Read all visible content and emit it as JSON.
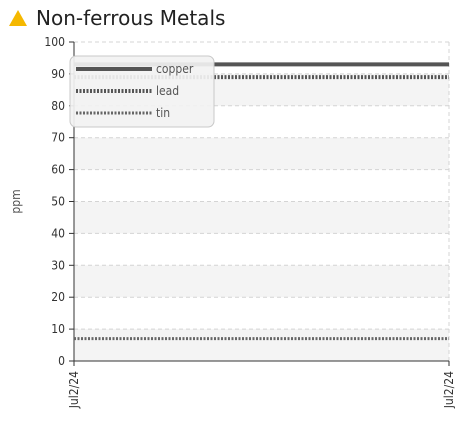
{
  "header": {
    "title": "Non-ferrous Metals",
    "icon": "warning-triangle-icon",
    "icon_color": "#f5b800"
  },
  "chart_data": {
    "type": "line",
    "title": "Non-ferrous Metals",
    "xlabel": "",
    "ylabel": "ppm",
    "ylim": [
      0,
      100
    ],
    "yticks": [
      0,
      10,
      20,
      30,
      40,
      50,
      60,
      70,
      80,
      90,
      100
    ],
    "x_categories": [
      "Jul2/24",
      "Jul2/24"
    ],
    "grid": true,
    "legend_position": "top-left",
    "series": [
      {
        "name": "copper",
        "values": [
          93,
          93
        ],
        "color": "#555555",
        "style": "solid"
      },
      {
        "name": "lead",
        "values": [
          89,
          89
        ],
        "color": "#555555",
        "style": "dotted"
      },
      {
        "name": "tin",
        "values": [
          7,
          7
        ],
        "color": "#666666",
        "style": "dotted-thin"
      }
    ]
  }
}
